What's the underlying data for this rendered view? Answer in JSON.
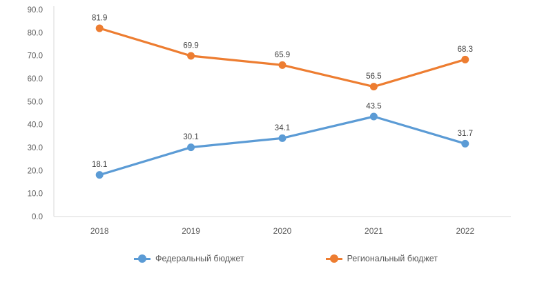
{
  "chart_data": {
    "type": "line",
    "title": "",
    "xlabel": "",
    "ylabel": "",
    "categories": [
      "2018",
      "2019",
      "2020",
      "2021",
      "2022"
    ],
    "series": [
      {
        "name": "Федеральный бюджет",
        "color": "#5B9BD5",
        "values": [
          18.1,
          30.1,
          34.1,
          43.5,
          31.7
        ]
      },
      {
        "name": "Региональный бюджет",
        "color": "#ED7D31",
        "values": [
          81.9,
          69.9,
          65.9,
          56.5,
          68.3
        ]
      }
    ],
    "ylim": [
      0,
      90
    ],
    "ytick_step": 10,
    "ytick_labels": [
      "0.0",
      "10.0",
      "20.0",
      "30.0",
      "40.0",
      "50.0",
      "60.0",
      "70.0",
      "80.0",
      "90.0"
    ],
    "grid": false,
    "data_labels": true,
    "marker": "circle",
    "legend_position": "bottom",
    "axis_color": "#D9D9D9",
    "tick_label_color": "#595959",
    "data_label_color": "#404040"
  }
}
